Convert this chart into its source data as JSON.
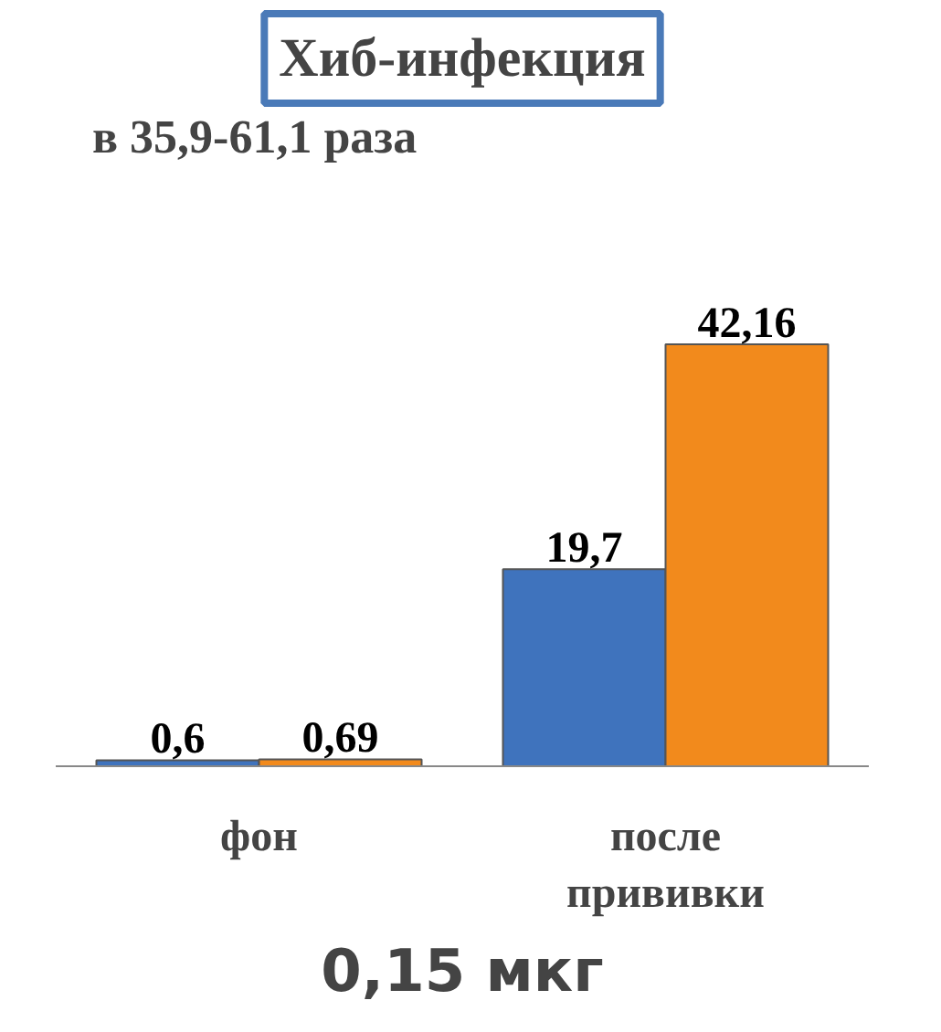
{
  "chart_data": {
    "type": "bar",
    "title": "Хиб-инфекция",
    "categories": [
      "фон",
      "после прививки"
    ],
    "series": [
      {
        "color": "#3f73bd",
        "values": [
          0.6,
          19.7
        ],
        "value_labels": [
          "0,6",
          "19,7"
        ]
      },
      {
        "color": "#f28a1c",
        "values": [
          0.69,
          42.16
        ],
        "value_labels": [
          "0,69",
          "42,16"
        ]
      }
    ],
    "annotations": [
      "в 35,9-61,1 раза",
      "0,15 мкг"
    ]
  }
}
